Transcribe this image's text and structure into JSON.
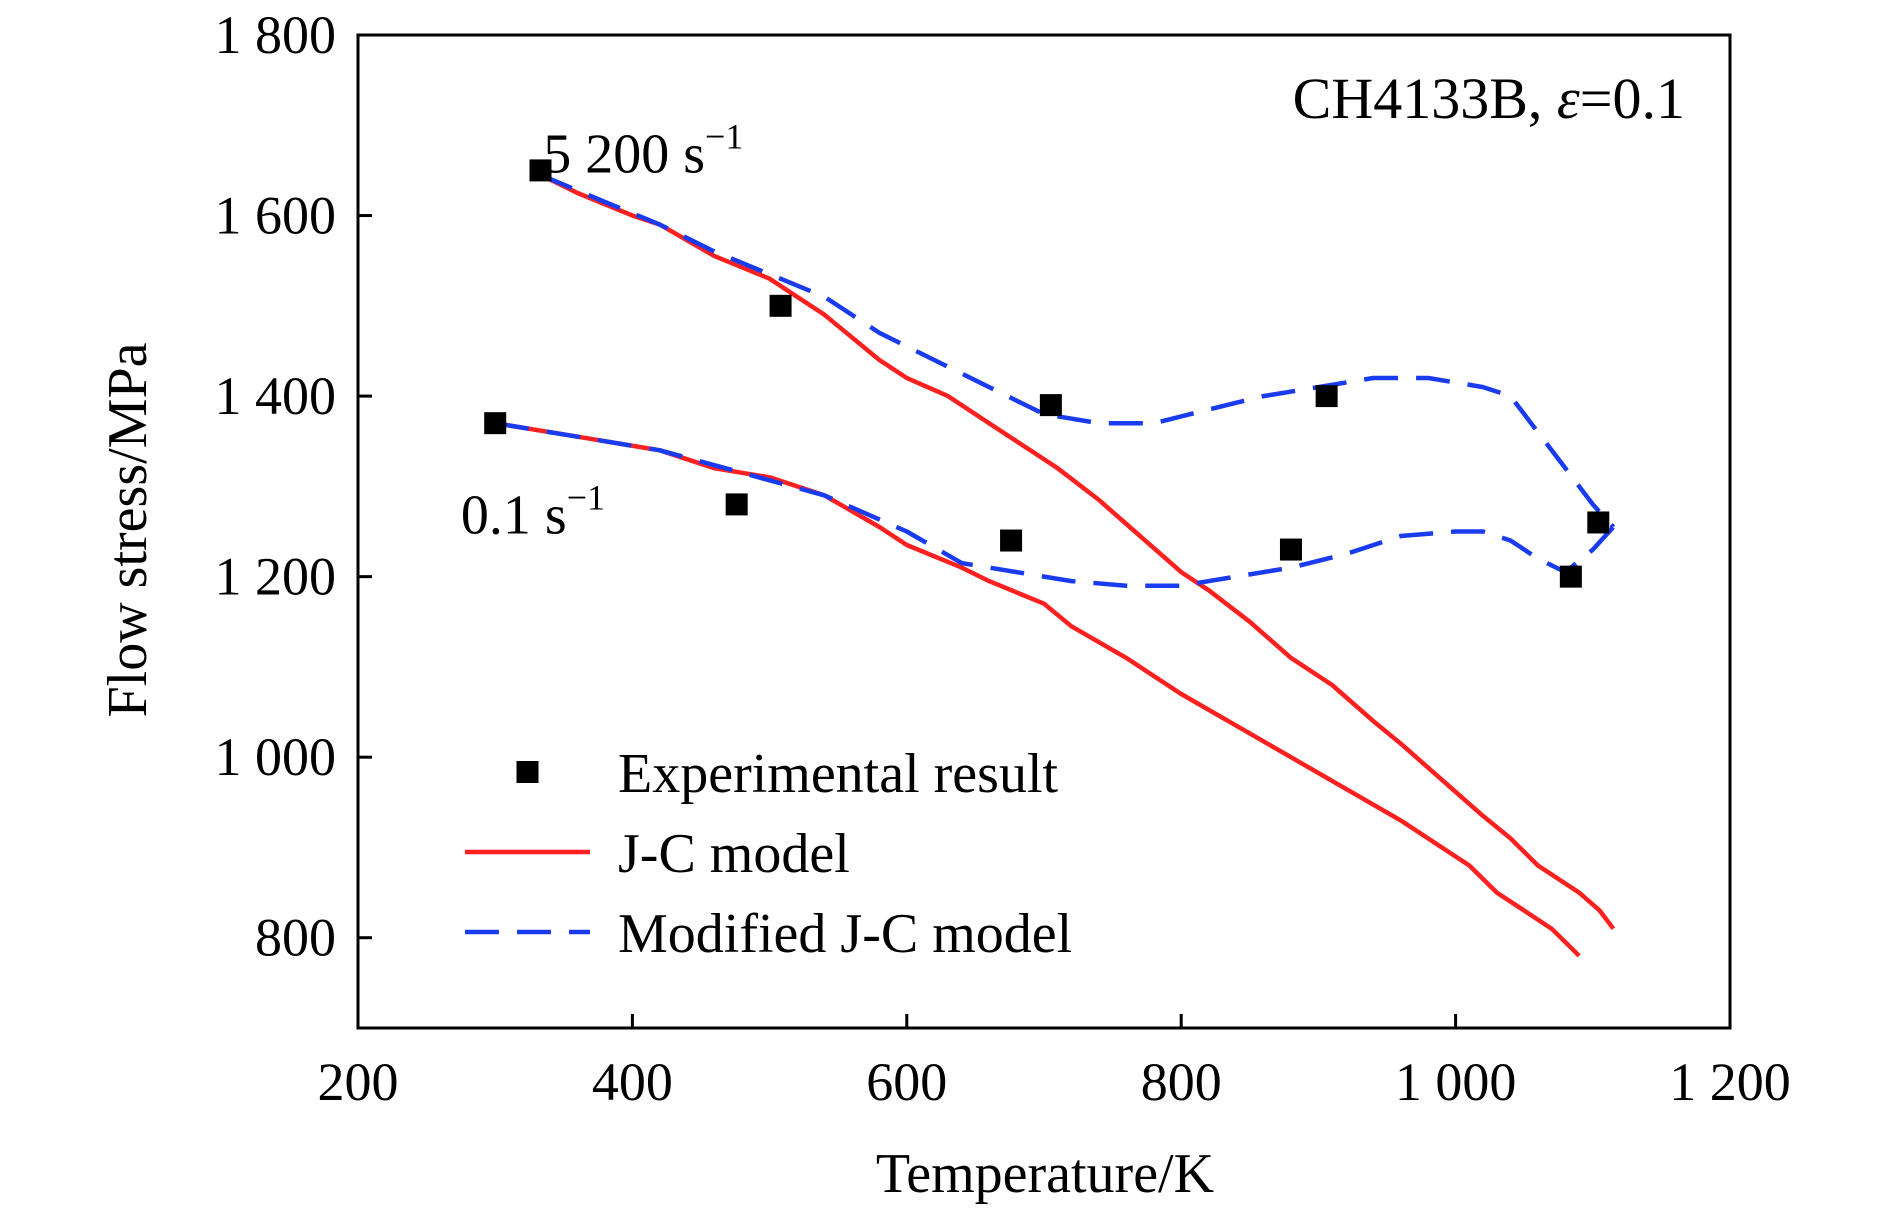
{
  "chart_data": {
    "type": "line",
    "title": "",
    "header_label": {
      "main": "CH4133B, ",
      "symbol": "ε",
      "rest": "=0.1"
    },
    "xlabel": "Temperature/K",
    "ylabel": "Flow stress/MPa",
    "xlim": [
      200,
      1200
    ],
    "ylim": [
      700,
      1800
    ],
    "x_ticks": [
      200,
      400,
      600,
      800,
      1000,
      1200
    ],
    "x_tick_labels": [
      "200",
      "400",
      "600",
      "800",
      "1 000",
      "1 200"
    ],
    "y_ticks": [
      800,
      1000,
      1200,
      1400,
      1600,
      1800
    ],
    "y_tick_labels": [
      "800",
      "1 000",
      "1 200",
      "1 400",
      "1 600",
      "1 800"
    ],
    "grid": false,
    "legend_position": "bottom-left",
    "legend": [
      {
        "label": "Experimental result",
        "style": "square-marker",
        "color": "#000000"
      },
      {
        "label": "J-C model",
        "style": "solid-line",
        "color": "#ff2020"
      },
      {
        "label": "Modified J-C model",
        "style": "dashed-line",
        "color": "#1a3cf0"
      }
    ],
    "rate_labels": [
      {
        "base": "5 200 s",
        "sup": "−1",
        "x": 335,
        "y": 1670
      },
      {
        "base": "0.1 s",
        "sup": "−1",
        "x": 275,
        "y": 1270
      }
    ],
    "series": [
      {
        "name": "Experimental result",
        "rate": "5 200 s−1",
        "kind": "scatter",
        "points": [
          [
            333,
            1650
          ],
          [
            508,
            1500
          ],
          [
            705,
            1390
          ],
          [
            906,
            1400
          ],
          [
            1104,
            1260
          ]
        ]
      },
      {
        "name": "Experimental result",
        "rate": "0.1 s−1",
        "kind": "scatter",
        "points": [
          [
            300,
            1370
          ],
          [
            476,
            1280
          ],
          [
            676,
            1240
          ],
          [
            880,
            1230
          ],
          [
            1084,
            1200
          ]
        ]
      },
      {
        "name": "J-C model",
        "rate": "5 200 s−1",
        "kind": "line",
        "points": [
          [
            333,
            1645
          ],
          [
            360,
            1625
          ],
          [
            400,
            1600
          ],
          [
            420,
            1590
          ],
          [
            460,
            1555
          ],
          [
            500,
            1530
          ],
          [
            540,
            1490
          ],
          [
            580,
            1440
          ],
          [
            600,
            1420
          ],
          [
            630,
            1400
          ],
          [
            660,
            1370
          ],
          [
            690,
            1340
          ],
          [
            710,
            1320
          ],
          [
            740,
            1285
          ],
          [
            770,
            1245
          ],
          [
            800,
            1205
          ],
          [
            820,
            1185
          ],
          [
            850,
            1150
          ],
          [
            880,
            1110
          ],
          [
            910,
            1080
          ],
          [
            940,
            1040
          ],
          [
            960,
            1015
          ],
          [
            990,
            975
          ],
          [
            1020,
            935
          ],
          [
            1040,
            910
          ],
          [
            1060,
            880
          ],
          [
            1090,
            850
          ],
          [
            1105,
            830
          ],
          [
            1115,
            810
          ]
        ]
      },
      {
        "name": "J-C model",
        "rate": "0.1 s−1",
        "kind": "line",
        "points": [
          [
            300,
            1370
          ],
          [
            340,
            1360
          ],
          [
            380,
            1350
          ],
          [
            420,
            1340
          ],
          [
            460,
            1320
          ],
          [
            500,
            1310
          ],
          [
            540,
            1290
          ],
          [
            580,
            1255
          ],
          [
            600,
            1235
          ],
          [
            640,
            1210
          ],
          [
            660,
            1195
          ],
          [
            700,
            1170
          ],
          [
            720,
            1145
          ],
          [
            760,
            1110
          ],
          [
            800,
            1070
          ],
          [
            840,
            1035
          ],
          [
            880,
            1000
          ],
          [
            920,
            965
          ],
          [
            960,
            930
          ],
          [
            990,
            900
          ],
          [
            1010,
            880
          ],
          [
            1030,
            850
          ],
          [
            1050,
            830
          ],
          [
            1070,
            810
          ],
          [
            1080,
            795
          ],
          [
            1090,
            780
          ]
        ]
      },
      {
        "name": "Modified J-C model",
        "rate": "5 200 s−1",
        "kind": "line",
        "points": [
          [
            333,
            1645
          ],
          [
            380,
            1615
          ],
          [
            420,
            1590
          ],
          [
            460,
            1560
          ],
          [
            500,
            1535
          ],
          [
            540,
            1510
          ],
          [
            580,
            1470
          ],
          [
            620,
            1440
          ],
          [
            660,
            1410
          ],
          [
            700,
            1380
          ],
          [
            740,
            1370
          ],
          [
            780,
            1370
          ],
          [
            820,
            1385
          ],
          [
            860,
            1400
          ],
          [
            900,
            1410
          ],
          [
            940,
            1420
          ],
          [
            980,
            1420
          ],
          [
            1020,
            1410
          ],
          [
            1040,
            1400
          ],
          [
            1060,
            1360
          ],
          [
            1080,
            1320
          ],
          [
            1100,
            1280
          ],
          [
            1115,
            1255
          ]
        ]
      },
      {
        "name": "Modified J-C model",
        "rate": "0.1 s−1",
        "kind": "line",
        "points": [
          [
            300,
            1370
          ],
          [
            360,
            1355
          ],
          [
            420,
            1340
          ],
          [
            480,
            1315
          ],
          [
            540,
            1290
          ],
          [
            600,
            1250
          ],
          [
            640,
            1215
          ],
          [
            680,
            1205
          ],
          [
            720,
            1195
          ],
          [
            760,
            1190
          ],
          [
            800,
            1190
          ],
          [
            840,
            1200
          ],
          [
            880,
            1210
          ],
          [
            920,
            1225
          ],
          [
            960,
            1245
          ],
          [
            1000,
            1250
          ],
          [
            1020,
            1250
          ],
          [
            1040,
            1240
          ],
          [
            1060,
            1220
          ],
          [
            1080,
            1205
          ],
          [
            1100,
            1230
          ],
          [
            1115,
            1255
          ]
        ]
      }
    ]
  }
}
